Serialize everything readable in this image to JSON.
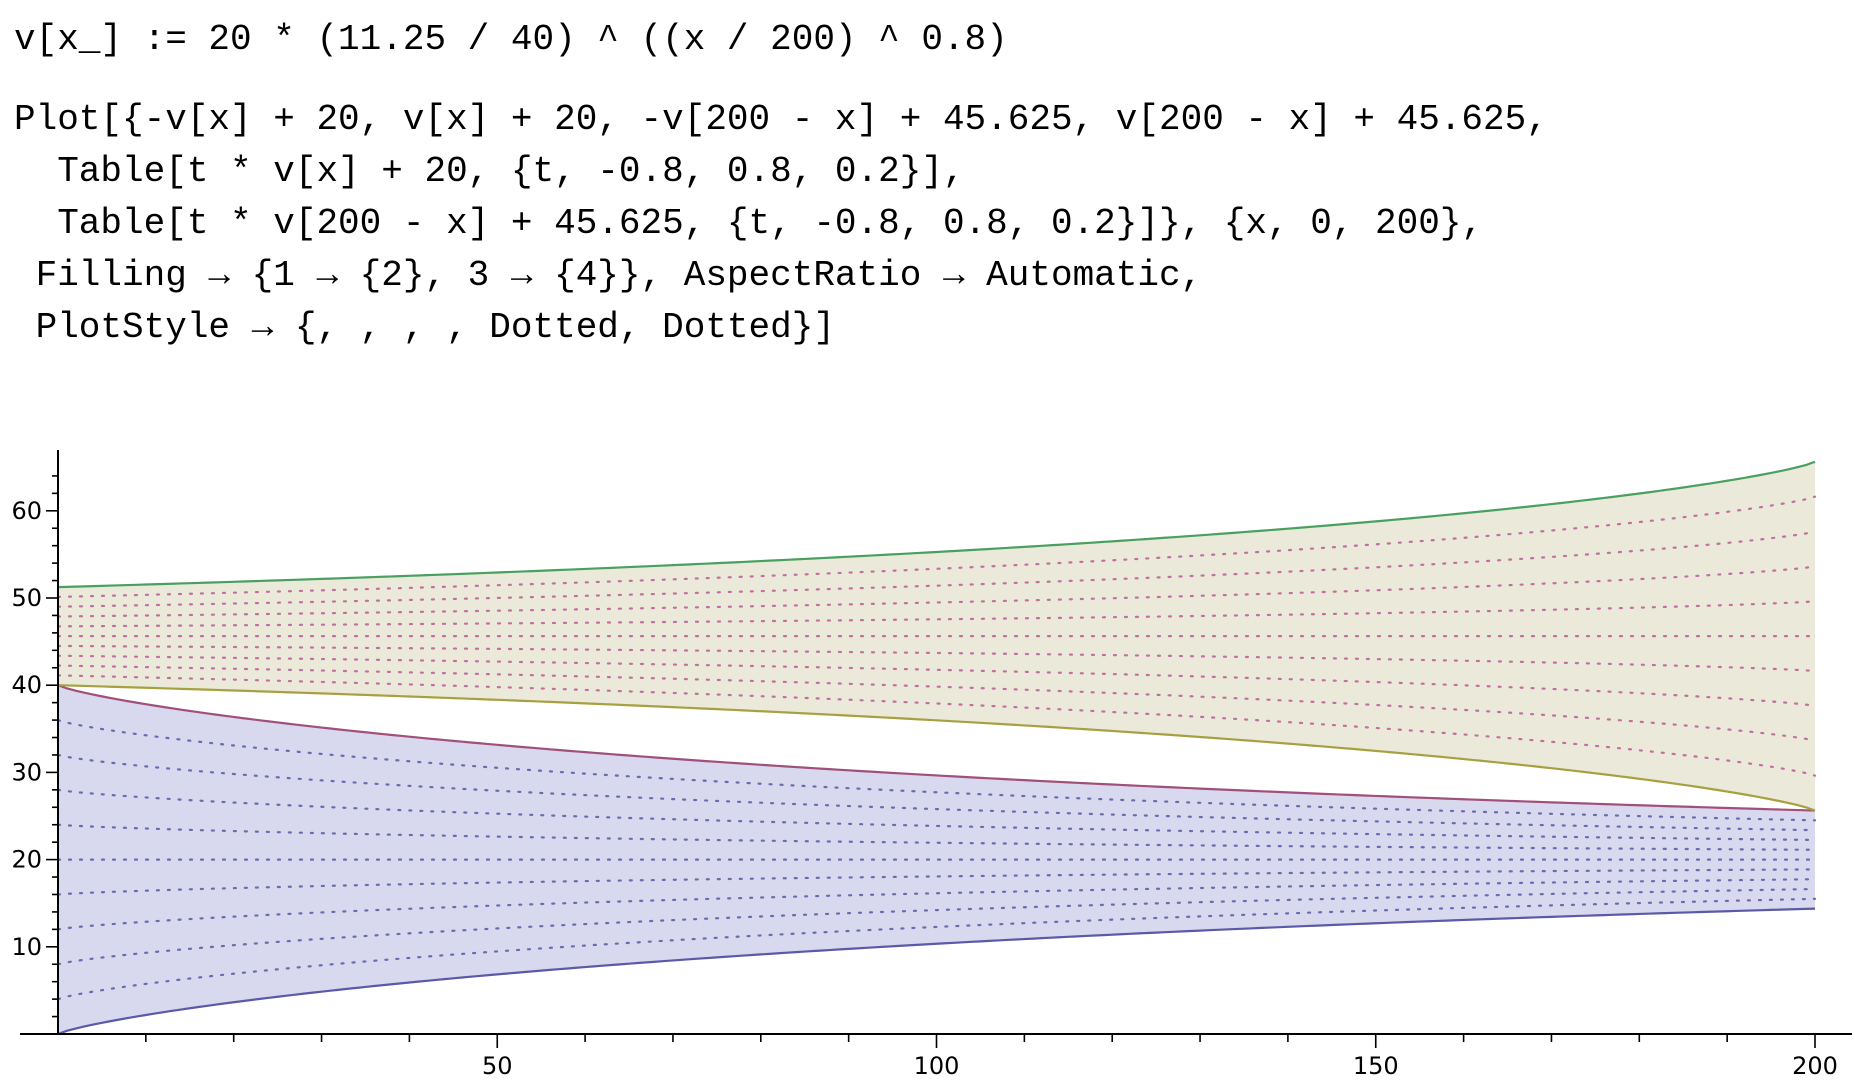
{
  "notebook": {
    "input_lines": [
      "v[x_] := 20 * (11.25 / 40) ^ ((x / 200) ^ 0.8)",
      "Plot[{-v[x] + 20, v[x] + 20, -v[200 - x] + 45.625, v[200 - x] + 45.625,",
      "  Table[t * v[x] + 20, {t, -0.8, 0.8, 0.2}],",
      "  Table[t * v[200 - x] + 45.625, {t, -0.8, 0.8, 0.2}]}, {x, 0, 200},",
      " Filling → {1 → {2}, 3 → {4}}, AspectRatio → Automatic,",
      " PlotStyle → {, , , , Dotted, Dotted}]"
    ]
  },
  "chart_data": {
    "type": "line",
    "title": "",
    "xlabel": "",
    "ylabel": "",
    "xlim": [
      0,
      200
    ],
    "ylim": [
      0,
      66
    ],
    "x_ticks": [
      50,
      100,
      150,
      200
    ],
    "y_ticks": [
      10,
      20,
      30,
      40,
      50,
      60
    ],
    "grid": false,
    "legend": "none",
    "functions": {
      "v": "20 * (11.25/40)^((x/200)^0.8)",
      "offset_a": 20,
      "offset_b": 45.625
    },
    "series": [
      {
        "color": "#5a5aa8",
        "sample_x": [
          0,
          50,
          100,
          150,
          200
        ],
        "values": [
          0.0,
          6.6,
          10.2,
          12.5,
          14.4
        ]
      },
      {
        "color": "#a0507a",
        "sample_x": [
          0,
          50,
          100,
          150,
          200
        ],
        "values": [
          40.0,
          33.4,
          29.8,
          27.5,
          25.6
        ]
      },
      {
        "color": "#a8a040",
        "sample_x": [
          0,
          50,
          100,
          150,
          200
        ],
        "values": [
          40.0,
          38.1,
          35.9,
          32.3,
          25.6
        ]
      },
      {
        "color": "#4aa060",
        "sample_x": [
          0,
          50,
          100,
          150,
          200
        ],
        "values": [
          51.3,
          53.2,
          55.4,
          58.9,
          65.6
        ]
      }
    ],
    "fills": [
      {
        "between": [
          1,
          2
        ],
        "color": "#d8d8ee"
      },
      {
        "between": [
          3,
          4
        ],
        "color": "#ebe9d9"
      }
    ],
    "dotted_families": {
      "t_values": [
        -0.8,
        -0.6,
        -0.4,
        -0.2,
        0.0,
        0.2,
        0.4,
        0.6,
        0.8
      ],
      "color_a": "#6a6ab0",
      "color_b": "#c070a0"
    }
  }
}
